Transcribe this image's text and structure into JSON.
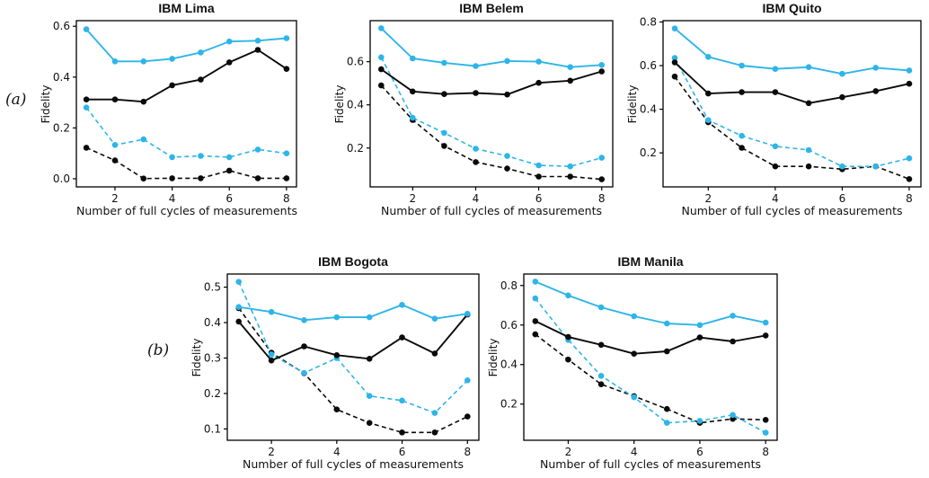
{
  "figure": {
    "panel_a_label": "(a)",
    "panel_b_label": "(b)"
  },
  "colors": {
    "cyan": "#2eb5e8",
    "black": "#0a0a0a"
  },
  "chart_data": [
    {
      "type": "line",
      "title": "IBM Lima",
      "xlabel": "Number of full cycles of measurements",
      "ylabel": "Fidelity",
      "x": [
        1,
        2,
        3,
        4,
        5,
        6,
        7,
        8
      ],
      "xticks": [
        2,
        4,
        6,
        8
      ],
      "yticks": [
        0.0,
        0.2,
        0.4,
        0.6
      ],
      "xlim": [
        0.65,
        8.35
      ],
      "ylim": [
        -0.032,
        0.622
      ],
      "grid": false,
      "legend": "none",
      "series": [
        {
          "name": "black dashed",
          "color": "black",
          "dashed": true,
          "values": [
            0.122,
            0.072,
            0.001,
            0.002,
            0.002,
            0.032,
            0.002,
            0.002
          ]
        },
        {
          "name": "cyan dashed",
          "color": "cyan",
          "dashed": true,
          "values": [
            0.28,
            0.133,
            0.155,
            0.085,
            0.09,
            0.085,
            0.115,
            0.1
          ]
        },
        {
          "name": "black solid",
          "color": "black",
          "dashed": false,
          "values": [
            0.312,
            0.312,
            0.303,
            0.368,
            0.39,
            0.458,
            0.507,
            0.432
          ]
        },
        {
          "name": "cyan solid",
          "color": "cyan",
          "dashed": false,
          "values": [
            0.588,
            0.462,
            0.462,
            0.472,
            0.497,
            0.54,
            0.543,
            0.553
          ]
        }
      ]
    },
    {
      "type": "line",
      "title": "IBM Belem",
      "xlabel": "Number of full cycles of measurements",
      "ylabel": "Fidelity",
      "x": [
        1,
        2,
        3,
        4,
        5,
        6,
        7,
        8
      ],
      "xticks": [
        2,
        4,
        6,
        8
      ],
      "yticks": [
        0.2,
        0.4,
        0.6
      ],
      "xlim": [
        0.65,
        8.35
      ],
      "ylim": [
        0.02,
        0.79
      ],
      "grid": false,
      "legend": "none",
      "series": [
        {
          "name": "black dashed",
          "color": "black",
          "dashed": true,
          "values": [
            0.49,
            0.33,
            0.21,
            0.135,
            0.105,
            0.068,
            0.068,
            0.055
          ]
        },
        {
          "name": "cyan dashed",
          "color": "cyan",
          "dashed": true,
          "values": [
            0.62,
            0.34,
            0.27,
            0.197,
            0.163,
            0.12,
            0.115,
            0.155
          ]
        },
        {
          "name": "black solid",
          "color": "black",
          "dashed": false,
          "values": [
            0.565,
            0.462,
            0.45,
            0.455,
            0.448,
            0.502,
            0.512,
            0.555
          ]
        },
        {
          "name": "cyan solid",
          "color": "cyan",
          "dashed": false,
          "values": [
            0.755,
            0.615,
            0.595,
            0.58,
            0.603,
            0.6,
            0.575,
            0.585
          ]
        }
      ]
    },
    {
      "type": "line",
      "title": "IBM Quito",
      "xlabel": "Number of full cycles of measurements",
      "ylabel": "Fidelity",
      "x": [
        1,
        2,
        3,
        4,
        5,
        6,
        7,
        8
      ],
      "xticks": [
        2,
        4,
        6,
        8
      ],
      "yticks": [
        0.2,
        0.4,
        0.6,
        0.8
      ],
      "xlim": [
        0.65,
        8.35
      ],
      "ylim": [
        0.044,
        0.806
      ],
      "grid": false,
      "legend": "none",
      "series": [
        {
          "name": "black dashed",
          "color": "black",
          "dashed": true,
          "values": [
            0.55,
            0.34,
            0.223,
            0.138,
            0.138,
            0.125,
            0.138,
            0.08
          ]
        },
        {
          "name": "cyan dashed",
          "color": "cyan",
          "dashed": true,
          "values": [
            0.635,
            0.35,
            0.278,
            0.23,
            0.213,
            0.138,
            0.138,
            0.175
          ]
        },
        {
          "name": "black solid",
          "color": "black",
          "dashed": false,
          "values": [
            0.615,
            0.472,
            0.478,
            0.478,
            0.428,
            0.455,
            0.483,
            0.517
          ]
        },
        {
          "name": "cyan solid",
          "color": "cyan",
          "dashed": false,
          "values": [
            0.77,
            0.64,
            0.6,
            0.585,
            0.593,
            0.562,
            0.59,
            0.578
          ]
        }
      ]
    },
    {
      "type": "line",
      "title": "IBM Bogota",
      "xlabel": "Number of full cycles of measurements",
      "ylabel": "Fidelity",
      "x": [
        1,
        2,
        3,
        4,
        5,
        6,
        7,
        8
      ],
      "xticks": [
        2,
        4,
        6,
        8
      ],
      "yticks": [
        0.1,
        0.2,
        0.3,
        0.4,
        0.5
      ],
      "xlim": [
        0.65,
        8.35
      ],
      "ylim": [
        0.068,
        0.537
      ],
      "grid": false,
      "legend": "none",
      "series": [
        {
          "name": "black dashed",
          "color": "black",
          "dashed": true,
          "values": [
            0.441,
            0.315,
            0.257,
            0.155,
            0.117,
            0.09,
            0.09,
            0.135
          ]
        },
        {
          "name": "cyan dashed",
          "color": "cyan",
          "dashed": true,
          "values": [
            0.515,
            0.31,
            0.258,
            0.3,
            0.193,
            0.18,
            0.145,
            0.237
          ]
        },
        {
          "name": "black solid",
          "color": "black",
          "dashed": false,
          "values": [
            0.403,
            0.293,
            0.333,
            0.308,
            0.298,
            0.358,
            0.313,
            0.423
          ]
        },
        {
          "name": "cyan solid",
          "color": "cyan",
          "dashed": false,
          "values": [
            0.444,
            0.43,
            0.407,
            0.415,
            0.415,
            0.45,
            0.411,
            0.425
          ]
        }
      ]
    },
    {
      "type": "line",
      "title": "IBM Manila",
      "xlabel": "Number of full cycles of measurements",
      "ylabel": "Fidelity",
      "x": [
        1,
        2,
        3,
        4,
        5,
        6,
        7,
        8
      ],
      "xticks": [
        2,
        4,
        6,
        8
      ],
      "yticks": [
        0.2,
        0.4,
        0.6,
        0.8
      ],
      "xlim": [
        0.65,
        8.35
      ],
      "ylim": [
        0.017,
        0.858
      ],
      "grid": false,
      "legend": "none",
      "series": [
        {
          "name": "black dashed",
          "color": "black",
          "dashed": true,
          "values": [
            0.553,
            0.425,
            0.3,
            0.24,
            0.175,
            0.105,
            0.125,
            0.12
          ]
        },
        {
          "name": "cyan dashed",
          "color": "cyan",
          "dashed": true,
          "values": [
            0.735,
            0.525,
            0.343,
            0.235,
            0.105,
            0.115,
            0.145,
            0.055
          ]
        },
        {
          "name": "black solid",
          "color": "black",
          "dashed": false,
          "values": [
            0.62,
            0.54,
            0.5,
            0.455,
            0.467,
            0.537,
            0.517,
            0.547
          ]
        },
        {
          "name": "cyan solid",
          "color": "cyan",
          "dashed": false,
          "values": [
            0.82,
            0.75,
            0.69,
            0.645,
            0.608,
            0.6,
            0.647,
            0.612
          ]
        }
      ]
    }
  ]
}
